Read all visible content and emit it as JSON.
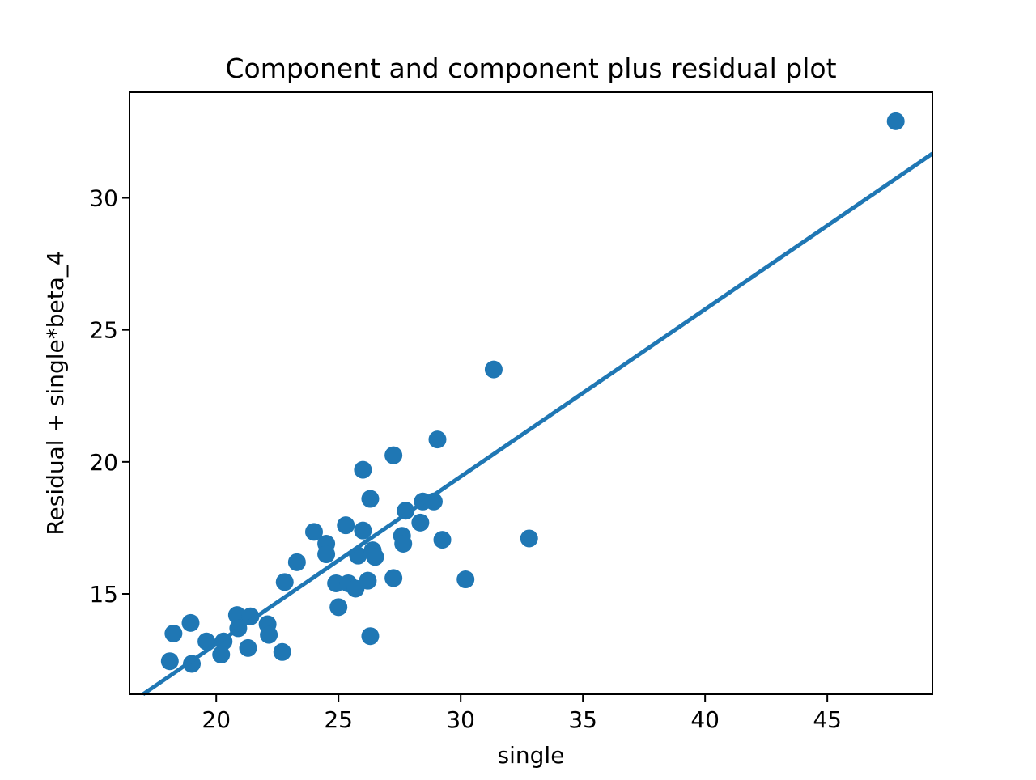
{
  "chart_data": {
    "type": "scatter",
    "title": "Component and component plus residual plot",
    "xlabel": "single",
    "ylabel": "Residual + single*beta_4",
    "xlim": [
      16.45,
      49.3
    ],
    "ylim": [
      11.2,
      34.0
    ],
    "x_ticks": [
      {
        "value": 20,
        "label": "20"
      },
      {
        "value": 25,
        "label": "25"
      },
      {
        "value": 30,
        "label": "30"
      },
      {
        "value": 35,
        "label": "35"
      },
      {
        "value": 40,
        "label": "40"
      },
      {
        "value": 45,
        "label": "45"
      }
    ],
    "y_ticks": [
      {
        "value": 15,
        "label": "15"
      },
      {
        "value": 20,
        "label": "20"
      },
      {
        "value": 25,
        "label": "25"
      },
      {
        "value": 30,
        "label": "30"
      }
    ],
    "grid": false,
    "legend": "none",
    "marker_color": "#1f77b4",
    "line_color": "#1f77b4",
    "frame_color": "#000000",
    "points": [
      [
        18.1,
        12.45
      ],
      [
        18.25,
        13.5
      ],
      [
        18.95,
        13.9
      ],
      [
        19.0,
        12.35
      ],
      [
        19.6,
        13.2
      ],
      [
        20.3,
        13.2
      ],
      [
        20.2,
        12.7
      ],
      [
        20.85,
        14.2
      ],
      [
        20.9,
        13.7
      ],
      [
        21.4,
        14.15
      ],
      [
        21.3,
        12.95
      ],
      [
        22.1,
        13.85
      ],
      [
        22.15,
        13.45
      ],
      [
        22.7,
        12.8
      ],
      [
        22.8,
        15.45
      ],
      [
        23.3,
        16.2
      ],
      [
        24.0,
        17.35
      ],
      [
        24.5,
        16.9
      ],
      [
        24.5,
        16.5
      ],
      [
        24.9,
        15.4
      ],
      [
        25.4,
        15.4
      ],
      [
        25.7,
        15.2
      ],
      [
        26.2,
        15.5
      ],
      [
        25.0,
        14.5
      ],
      [
        26.3,
        13.4
      ],
      [
        25.3,
        17.6
      ],
      [
        26.0,
        17.4
      ],
      [
        25.8,
        16.45
      ],
      [
        26.4,
        16.65
      ],
      [
        26.5,
        16.4
      ],
      [
        27.25,
        15.6
      ],
      [
        27.6,
        17.2
      ],
      [
        27.65,
        16.9
      ],
      [
        27.75,
        18.15
      ],
      [
        28.35,
        17.7
      ],
      [
        28.45,
        18.5
      ],
      [
        28.9,
        18.5
      ],
      [
        29.05,
        20.85
      ],
      [
        27.25,
        20.25
      ],
      [
        26.0,
        19.7
      ],
      [
        26.3,
        18.6
      ],
      [
        29.25,
        17.05
      ],
      [
        30.2,
        15.55
      ],
      [
        31.35,
        23.5
      ],
      [
        32.8,
        17.1
      ],
      [
        47.8,
        32.9
      ]
    ],
    "fit_line": {
      "slope": 0.634,
      "intercept": 0.42
    }
  }
}
